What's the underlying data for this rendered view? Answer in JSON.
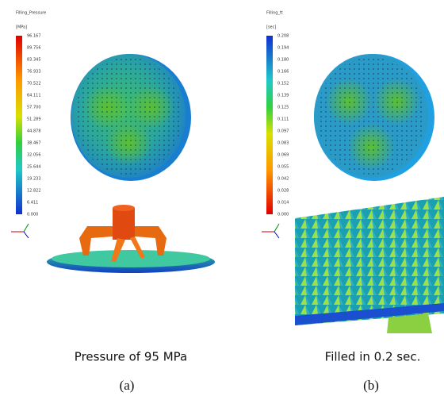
{
  "panels": [
    {
      "result_title": "Filling_Pressure",
      "unit": "[MPa]",
      "scale": [
        "96.167",
        "89.756",
        "83.345",
        "76.933",
        "70.522",
        "64.111",
        "57.700",
        "51.289",
        "44.878",
        "38.467",
        "32.056",
        "25.644",
        "19.233",
        "12.822",
        "6.411",
        "0.000"
      ],
      "caption": "Pressure of 95 MPa",
      "label": "(a)"
    },
    {
      "result_title": "Filling_tt",
      "unit": "[sec]",
      "scale": [
        "0.208",
        "0.194",
        "0.180",
        "0.166",
        "0.152",
        "0.139",
        "0.125",
        "0.111",
        "0.097",
        "0.083",
        "0.069",
        "0.055",
        "0.042",
        "0.028",
        "0.014",
        "0.000"
      ],
      "caption": "Filled in 0.2 sec.",
      "label": "(b)"
    }
  ]
}
